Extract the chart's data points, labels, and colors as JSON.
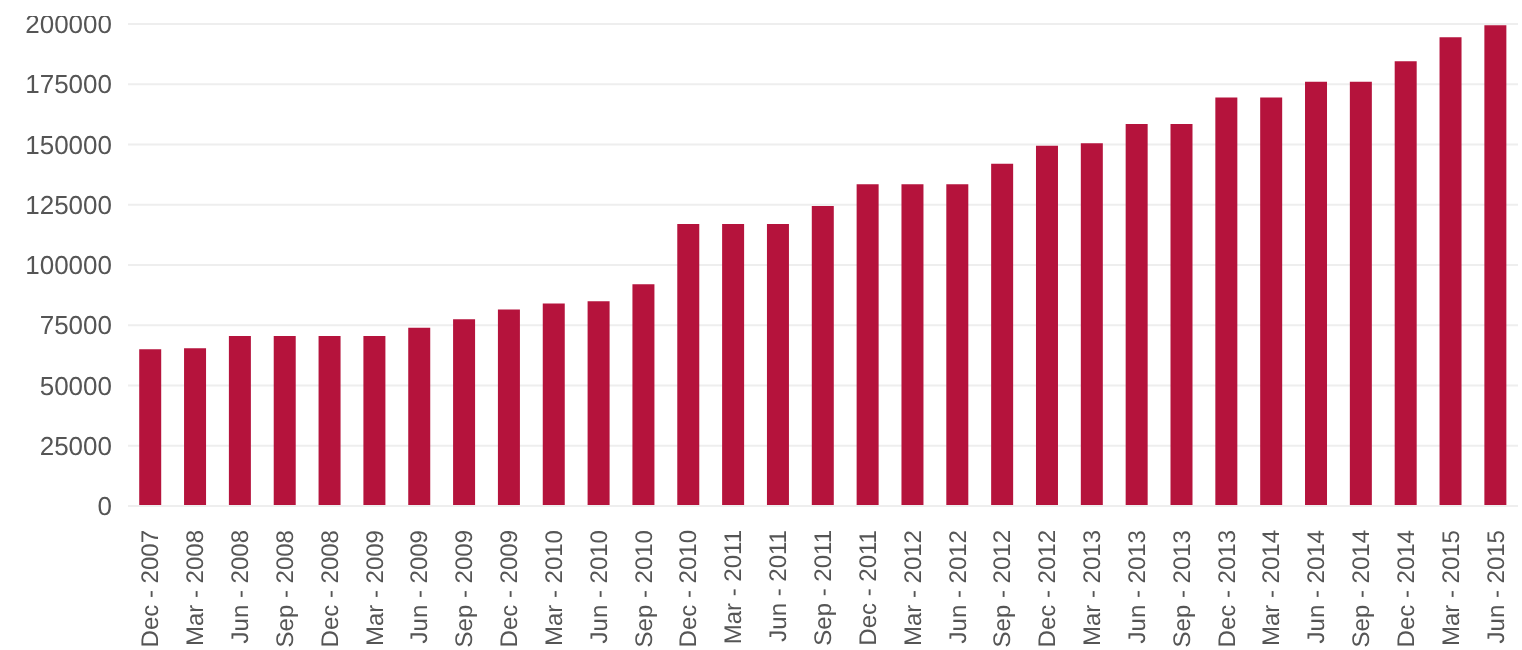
{
  "chart_data": {
    "type": "bar",
    "categories": [
      "Dec - 2007",
      "Mar - 2008",
      "Jun - 2008",
      "Sep - 2008",
      "Dec - 2008",
      "Mar - 2009",
      "Jun - 2009",
      "Sep - 2009",
      "Dec - 2009",
      "Mar - 2010",
      "Jun - 2010",
      "Sep - 2010",
      "Dec - 2010",
      "Mar - 2011",
      "Jun - 2011",
      "Sep - 2011",
      "Dec - 2011",
      "Mar - 2012",
      "Jun - 2012",
      "Sep - 2012",
      "Dec - 2012",
      "Mar - 2013",
      "Jun - 2013",
      "Sep - 2013",
      "Dec - 2013",
      "Mar - 2014",
      "Jun - 2014",
      "Sep - 2014",
      "Dec - 2014",
      "Mar - 2015",
      "Jun - 2015"
    ],
    "values": [
      65000,
      65500,
      70500,
      70500,
      70500,
      70500,
      74000,
      77500,
      81500,
      84000,
      85000,
      92000,
      117000,
      117000,
      117000,
      124500,
      133500,
      133500,
      133500,
      142000,
      149500,
      150500,
      158500,
      158500,
      169500,
      169500,
      176000,
      176000,
      184500,
      194500,
      199500
    ],
    "color": "#b5133c",
    "ylim": [
      0,
      200000
    ],
    "yticks": [
      0,
      25000,
      50000,
      75000,
      100000,
      125000,
      150000,
      175000,
      200000
    ],
    "grid": "y"
  }
}
